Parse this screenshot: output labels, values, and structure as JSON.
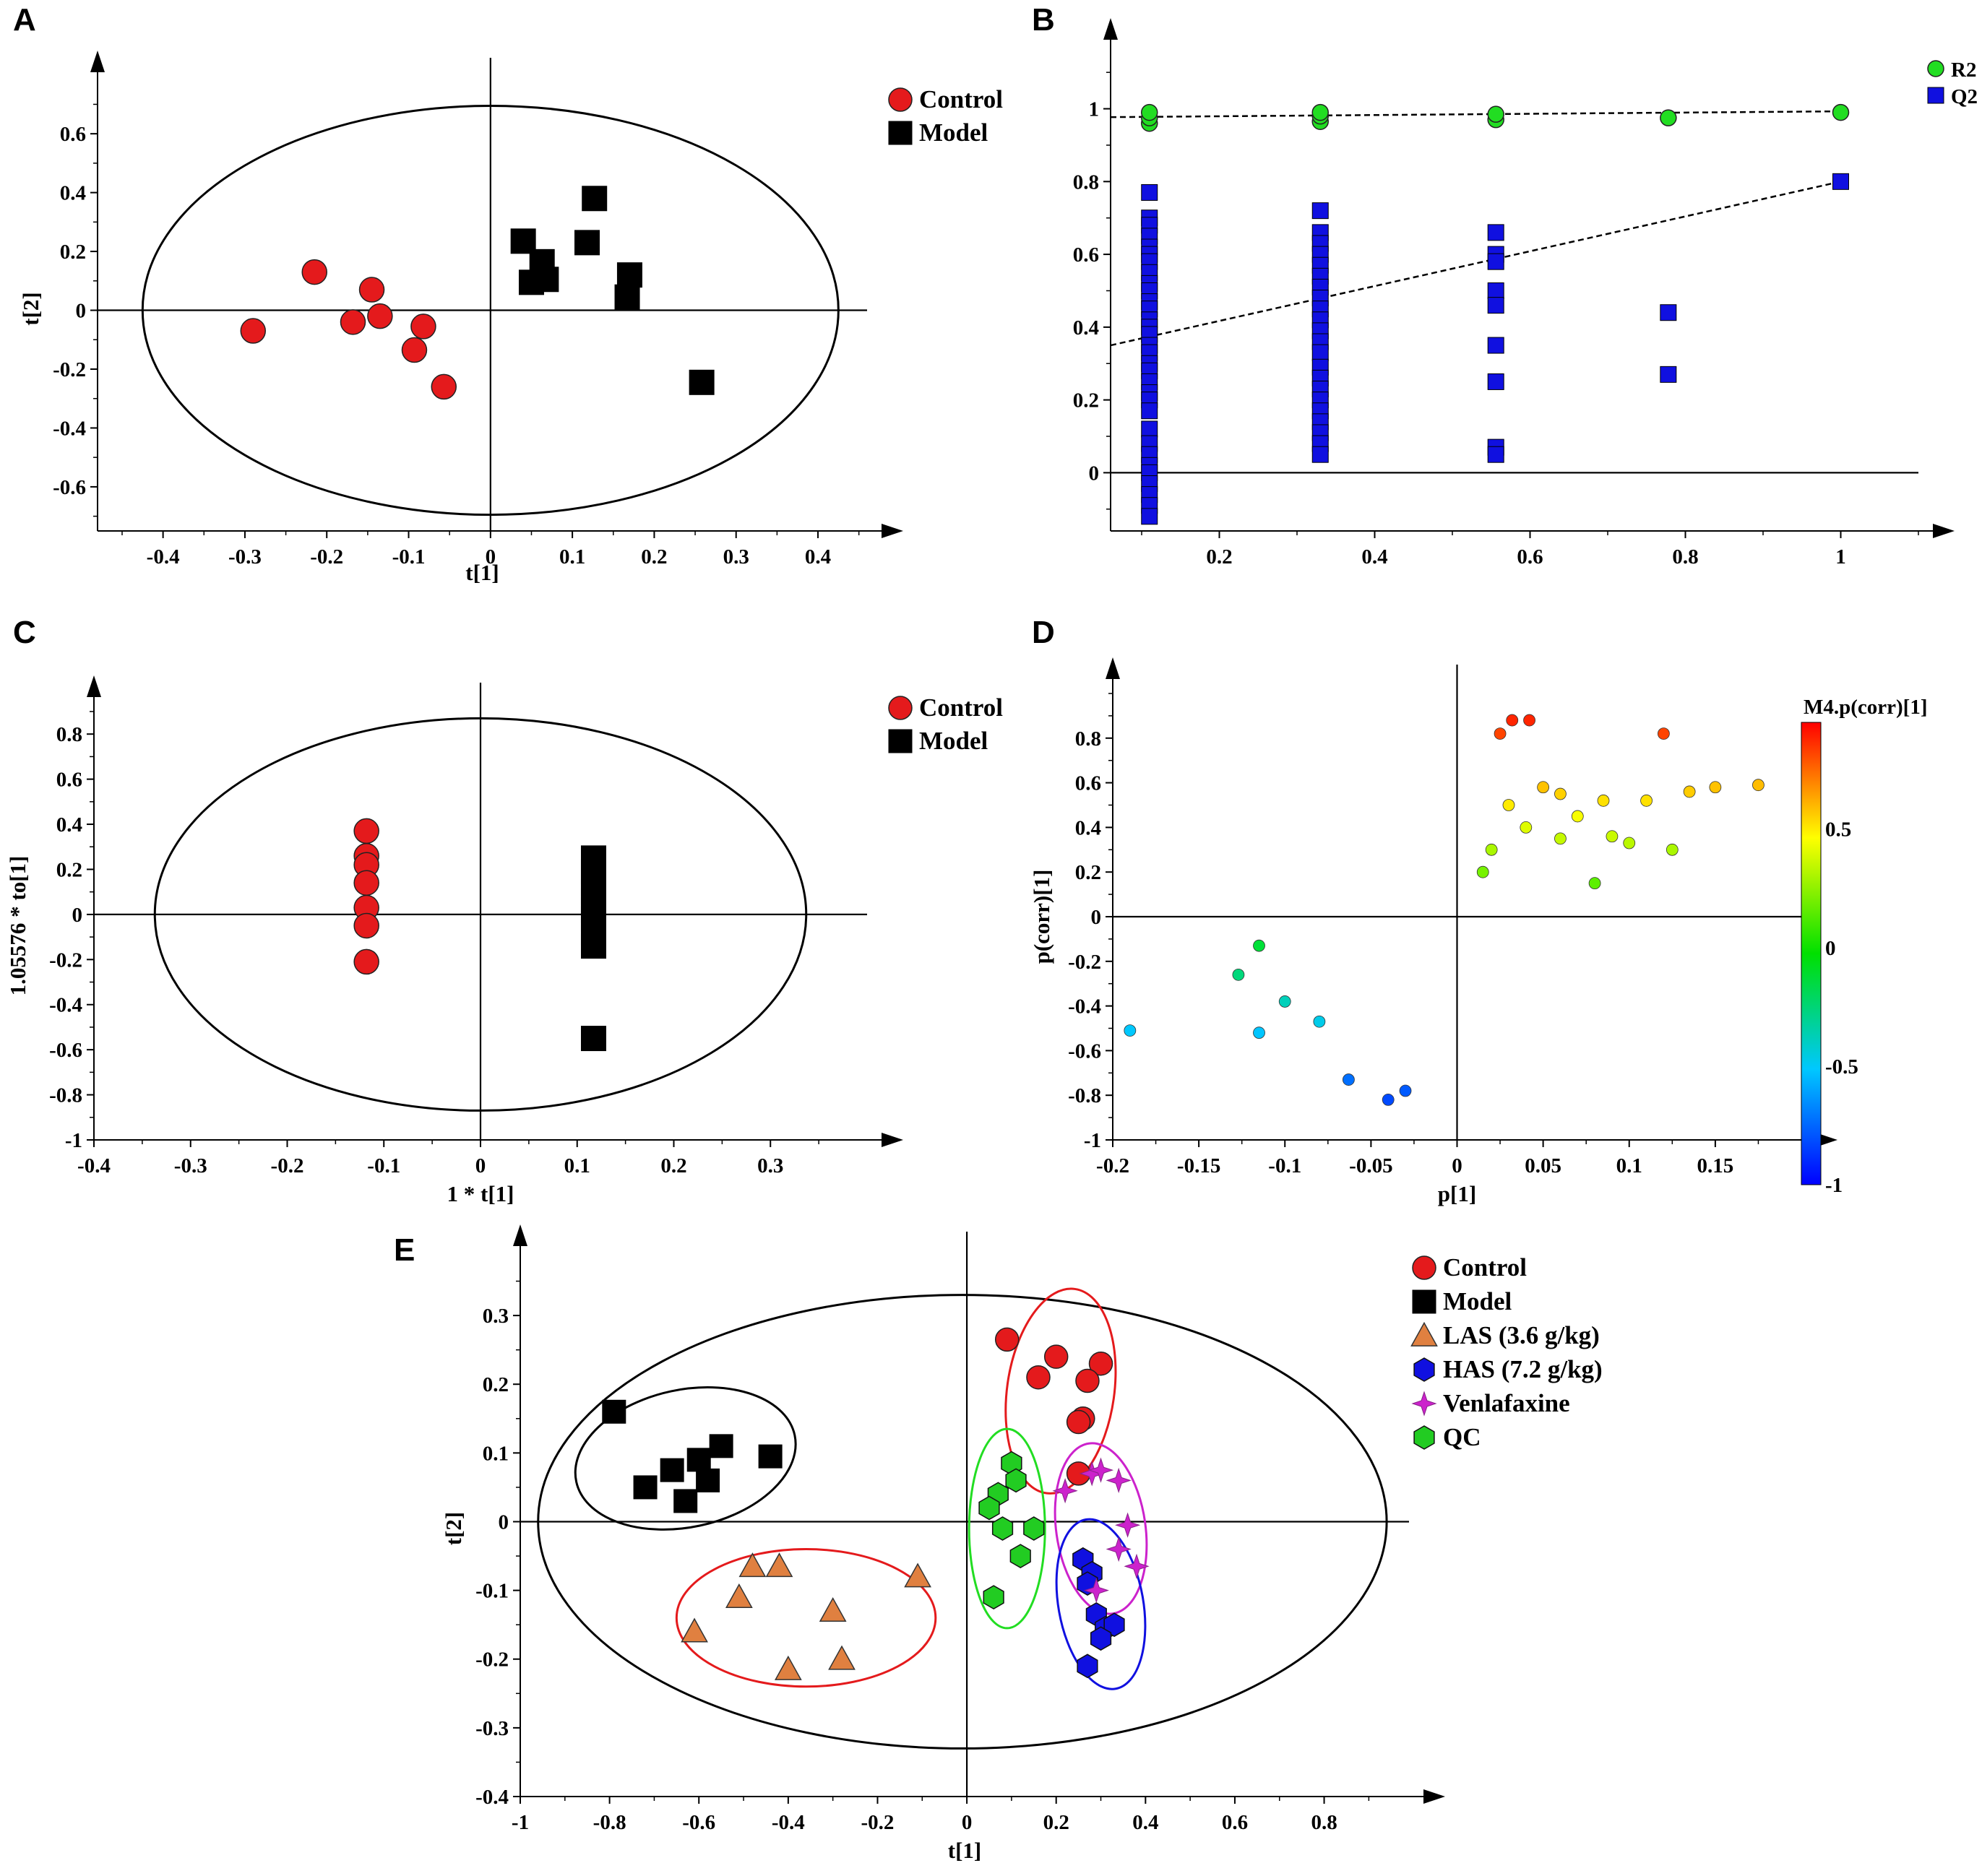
{
  "chart_data": [
    {
      "id": "A",
      "panel_label": "A",
      "type": "scatter",
      "xlabel": "t[1]",
      "ylabel": "t[2]",
      "xlim": [
        -0.48,
        0.46
      ],
      "ylim": [
        -0.75,
        0.76
      ],
      "xticks": [
        "-0.4",
        "-0.3",
        "-0.2",
        "-0.1",
        "0",
        "0.1",
        "0.2",
        "0.3",
        "0.4"
      ],
      "yticks": [
        "-0.6",
        "-0.4",
        "-0.2",
        "0",
        "0.2",
        "0.4",
        "0.6"
      ],
      "ellipse": {
        "cx": 0.0,
        "cy": 0.0,
        "rx": 0.425,
        "ry": 0.695
      },
      "legend": [
        {
          "label": "Control",
          "marker": "circle",
          "color": "#e41a1c"
        },
        {
          "label": "Model",
          "marker": "square",
          "color": "#000000"
        }
      ],
      "series": [
        {
          "name": "Control",
          "marker": "circle",
          "color": "#e41a1c",
          "points": [
            [
              -0.29,
              -0.07
            ],
            [
              -0.215,
              0.13
            ],
            [
              -0.145,
              0.07
            ],
            [
              -0.168,
              -0.04
            ],
            [
              -0.135,
              -0.02
            ],
            [
              -0.082,
              -0.055
            ],
            [
              -0.093,
              -0.135
            ],
            [
              -0.057,
              -0.26
            ]
          ]
        },
        {
          "name": "Model",
          "marker": "square",
          "color": "#000000",
          "points": [
            [
              0.04,
              0.235
            ],
            [
              0.063,
              0.165
            ],
            [
              0.05,
              0.095
            ],
            [
              0.068,
              0.105
            ],
            [
              0.118,
              0.23
            ],
            [
              0.127,
              0.38
            ],
            [
              0.17,
              0.12
            ],
            [
              0.167,
              0.045
            ],
            [
              0.258,
              -0.245
            ]
          ]
        }
      ]
    },
    {
      "id": "B",
      "panel_label": "B",
      "type": "scatter",
      "xlabel": "",
      "ylabel": "",
      "xlim": [
        0.06,
        1.1
      ],
      "ylim": [
        -0.16,
        1.15
      ],
      "xticks": [
        "0.2",
        "0.4",
        "0.6",
        "0.8",
        "1"
      ],
      "yticks": [
        "0",
        "0.2",
        "0.4",
        "0.6",
        "0.8",
        "1"
      ],
      "legend": [
        {
          "label": "R2",
          "marker": "circle",
          "color": "#22dd22"
        },
        {
          "label": "Q2",
          "marker": "square",
          "color": "#1010e0"
        }
      ],
      "series": [
        {
          "name": "R2",
          "marker": "circle",
          "color": "#22dd22",
          "points": [
            [
              0.11,
              0.96
            ],
            [
              0.11,
              0.975
            ],
            [
              0.11,
              0.99
            ],
            [
              0.33,
              0.965
            ],
            [
              0.33,
              0.98
            ],
            [
              0.33,
              0.99
            ],
            [
              0.556,
              0.97
            ],
            [
              0.556,
              0.985
            ],
            [
              0.778,
              0.975
            ],
            [
              1.0,
              0.99
            ]
          ]
        },
        {
          "name": "Q2",
          "marker": "square",
          "color": "#1010e0",
          "points_x": [
            0.11,
            0.33,
            0.556,
            0.778,
            1.0
          ],
          "points_y": [
            [
              0.77,
              0.7,
              0.68,
              0.65,
              0.62,
              0.6,
              0.58,
              0.55,
              0.52,
              0.5,
              0.47,
              0.45,
              0.42,
              0.4,
              0.38,
              0.35,
              0.33,
              0.3,
              0.28,
              0.25,
              0.22,
              0.2,
              0.17,
              0.12,
              0.08,
              0.05,
              0.02,
              0.0,
              -0.03,
              -0.06,
              -0.09,
              -0.12
            ],
            [
              0.72,
              0.66,
              0.63,
              0.6,
              0.57,
              0.54,
              0.51,
              0.48,
              0.45,
              0.42,
              0.39,
              0.36,
              0.33,
              0.29,
              0.26,
              0.23,
              0.2,
              0.17,
              0.14,
              0.11,
              0.08,
              0.05
            ],
            [
              0.66,
              0.6,
              0.58,
              0.5,
              0.46,
              0.35,
              0.25,
              0.07,
              0.05
            ],
            [
              0.44,
              0.27
            ],
            [
              0.8
            ]
          ]
        }
      ],
      "trend_lines": [
        {
          "name": "R2",
          "start": [
            0.06,
            0.977
          ],
          "end": [
            1.0,
            0.993
          ]
        },
        {
          "name": "Q2",
          "start": [
            0.06,
            0.35
          ],
          "end": [
            1.0,
            0.8
          ]
        }
      ]
    },
    {
      "id": "C",
      "panel_label": "C",
      "type": "scatter",
      "xlabel": "1 * t[1]",
      "ylabel": "1.05576 * to[1]",
      "xlim": [
        -0.4,
        0.4
      ],
      "ylim": [
        -1.0,
        0.9
      ],
      "xticks": [
        "-0.4",
        "-0.3",
        "-0.2",
        "-0.1",
        "0",
        "0.1",
        "0.2",
        "0.3"
      ],
      "yticks": [
        "-1",
        "-0.8",
        "-0.6",
        "-0.4",
        "-0.2",
        "0",
        "0.2",
        "0.4",
        "0.6",
        "0.8"
      ],
      "ellipse": {
        "cx": 0.0,
        "cy": 0.0,
        "rx": 0.337,
        "ry": 0.87
      },
      "legend": [
        {
          "label": "Control",
          "marker": "circle",
          "color": "#e41a1c"
        },
        {
          "label": "Model",
          "marker": "square",
          "color": "#000000"
        }
      ],
      "series": [
        {
          "name": "Control",
          "marker": "circle",
          "color": "#e41a1c",
          "points": [
            [
              -0.118,
              0.37
            ],
            [
              -0.118,
              0.26
            ],
            [
              -0.118,
              0.22
            ],
            [
              -0.118,
              0.14
            ],
            [
              -0.118,
              0.03
            ],
            [
              -0.118,
              -0.05
            ],
            [
              -0.118,
              -0.21
            ]
          ]
        },
        {
          "name": "Model",
          "marker": "square",
          "color": "#000000",
          "points": [
            [
              0.117,
              0.25
            ],
            [
              0.117,
              0.19
            ],
            [
              0.117,
              0.14
            ],
            [
              0.117,
              0.1
            ],
            [
              0.117,
              0.06
            ],
            [
              0.117,
              0.02
            ],
            [
              0.117,
              -0.02
            ],
            [
              0.117,
              -0.08
            ],
            [
              0.117,
              -0.14
            ],
            [
              0.117,
              -0.55
            ]
          ]
        }
      ]
    },
    {
      "id": "D",
      "panel_label": "D",
      "type": "scatter",
      "xlabel": "p[1]",
      "ylabel": "p(corr)[1]",
      "xlim": [
        -0.2,
        0.2
      ],
      "ylim": [
        -1.0,
        1.0
      ],
      "xticks": [
        "-0.2",
        "-0.15",
        "-0.1",
        "-0.05",
        "0",
        "0.05",
        "0.1",
        "0.15"
      ],
      "yticks": [
        "-1",
        "-0.8",
        "-0.6",
        "-0.4",
        "-0.2",
        "0",
        "0.2",
        "0.4",
        "0.6",
        "0.8"
      ],
      "colorbar": {
        "title": "M4.p(corr)[1]",
        "ticks": [
          "0.5",
          "0",
          "-0.5",
          "-1"
        ],
        "range": [
          -1,
          0.95
        ]
      },
      "series": [
        {
          "name": "variables",
          "marker": "circle",
          "color_by": "p(corr)",
          "points": [
            [
              -0.19,
              -0.51
            ],
            [
              -0.115,
              -0.52
            ],
            [
              -0.115,
              -0.13
            ],
            [
              -0.127,
              -0.26
            ],
            [
              -0.1,
              -0.38
            ],
            [
              -0.08,
              -0.47
            ],
            [
              -0.063,
              -0.73
            ],
            [
              -0.04,
              -0.82
            ],
            [
              -0.03,
              -0.78
            ],
            [
              0.12,
              0.82
            ],
            [
              0.175,
              0.59
            ],
            [
              0.15,
              0.58
            ],
            [
              0.135,
              0.56
            ],
            [
              0.11,
              0.52
            ],
            [
              0.125,
              0.3
            ],
            [
              0.1,
              0.33
            ],
            [
              0.08,
              0.15
            ],
            [
              0.032,
              0.88
            ],
            [
              0.042,
              0.88
            ],
            [
              0.025,
              0.82
            ],
            [
              0.05,
              0.58
            ],
            [
              0.06,
              0.55
            ],
            [
              0.07,
              0.45
            ],
            [
              0.09,
              0.36
            ],
            [
              0.085,
              0.52
            ],
            [
              0.06,
              0.35
            ],
            [
              0.04,
              0.4
            ],
            [
              0.03,
              0.5
            ],
            [
              0.02,
              0.3
            ],
            [
              0.015,
              0.2
            ]
          ]
        }
      ]
    },
    {
      "id": "E",
      "panel_label": "E",
      "type": "scatter",
      "xlabel": "t[1]",
      "ylabel": "t[2]",
      "xlim": [
        -1.0,
        0.99
      ],
      "ylim": [
        -0.4,
        0.38
      ],
      "xticks": [
        "-1",
        "-0.8",
        "-0.6",
        "-0.4",
        "-0.2",
        "0",
        "0.2",
        "0.4",
        "0.6",
        "0.8"
      ],
      "yticks": [
        "-0.4",
        "-0.3",
        "-0.2",
        "-0.1",
        "0",
        "0.1",
        "0.2",
        "0.3"
      ],
      "ellipse": {
        "cx": -0.01,
        "cy": 0.0,
        "rx": 0.95,
        "ry": 0.33
      },
      "legend": [
        {
          "label": "Control",
          "marker": "circle",
          "color": "#e41a1c"
        },
        {
          "label": "Model",
          "marker": "square",
          "color": "#000000"
        },
        {
          "label": "LAS (3.6 g/kg)",
          "marker": "triangle",
          "color": "#e08040"
        },
        {
          "label": "HAS (7.2 g/kg)",
          "marker": "hexagon",
          "color": "#1010e0"
        },
        {
          "label": "Venlafaxine",
          "marker": "star",
          "color": "#cc22cc"
        },
        {
          "label": "QC",
          "marker": "hexagon",
          "color": "#22cc22"
        }
      ],
      "series": [
        {
          "name": "Control",
          "marker": "circle",
          "color": "#e41a1c",
          "points": [
            [
              0.09,
              0.265
            ],
            [
              0.2,
              0.24
            ],
            [
              0.16,
              0.21
            ],
            [
              0.3,
              0.23
            ],
            [
              0.27,
              0.205
            ],
            [
              0.26,
              0.15
            ],
            [
              0.25,
              0.145
            ],
            [
              0.25,
              0.07
            ]
          ]
        },
        {
          "name": "Model",
          "marker": "square",
          "color": "#000000",
          "points": [
            [
              -0.79,
              0.16
            ],
            [
              -0.72,
              0.05
            ],
            [
              -0.66,
              0.075
            ],
            [
              -0.6,
              0.09
            ],
            [
              -0.55,
              0.11
            ],
            [
              -0.63,
              0.03
            ],
            [
              -0.58,
              0.06
            ],
            [
              -0.44,
              0.095
            ]
          ]
        },
        {
          "name": "LAS (3.6 g/kg)",
          "marker": "triangle",
          "color": "#e08040",
          "points": [
            [
              -0.61,
              -0.16
            ],
            [
              -0.51,
              -0.11
            ],
            [
              -0.48,
              -0.065
            ],
            [
              -0.42,
              -0.065
            ],
            [
              -0.4,
              -0.215
            ],
            [
              -0.3,
              -0.13
            ],
            [
              -0.28,
              -0.2
            ],
            [
              -0.11,
              -0.08
            ]
          ]
        },
        {
          "name": "HAS (7.2 g/kg)",
          "marker": "hexagon",
          "color": "#1010e0",
          "points": [
            [
              0.26,
              -0.055
            ],
            [
              0.28,
              -0.075
            ],
            [
              0.27,
              -0.09
            ],
            [
              0.29,
              -0.135
            ],
            [
              0.31,
              -0.155
            ],
            [
              0.33,
              -0.15
            ],
            [
              0.3,
              -0.17
            ],
            [
              0.27,
              -0.21
            ]
          ]
        },
        {
          "name": "Venlafaxine",
          "marker": "star",
          "color": "#cc22cc",
          "points": [
            [
              0.22,
              0.045
            ],
            [
              0.28,
              0.07
            ],
            [
              0.3,
              0.075
            ],
            [
              0.34,
              0.06
            ],
            [
              0.36,
              -0.005
            ],
            [
              0.34,
              -0.04
            ],
            [
              0.38,
              -0.065
            ],
            [
              0.29,
              -0.1
            ]
          ]
        },
        {
          "name": "QC",
          "marker": "hexagon",
          "color": "#22cc22",
          "points": [
            [
              0.1,
              0.085
            ],
            [
              0.11,
              0.06
            ],
            [
              0.07,
              0.04
            ],
            [
              0.05,
              0.02
            ],
            [
              0.08,
              -0.01
            ],
            [
              0.15,
              -0.01
            ],
            [
              0.12,
              -0.05
            ],
            [
              0.06,
              -0.11
            ]
          ]
        }
      ],
      "group_ellipses": [
        {
          "group": "Model",
          "color": "#000000",
          "cx": -0.63,
          "cy": 0.092,
          "rx": 0.25,
          "ry": 0.1,
          "angle_deg": 12
        },
        {
          "group": "LAS (3.6 g/kg)",
          "color": "#e41a1c",
          "cx": -0.36,
          "cy": -0.14,
          "rx": 0.29,
          "ry": 0.1,
          "angle_deg": 0
        },
        {
          "group": "Control",
          "color": "#e41a1c",
          "cx": 0.21,
          "cy": 0.19,
          "rx": 0.12,
          "ry": 0.15,
          "angle_deg": -8
        },
        {
          "group": "QC",
          "color": "#22dd22",
          "cx": 0.09,
          "cy": -0.01,
          "rx": 0.085,
          "ry": 0.145,
          "angle_deg": 0
        },
        {
          "group": "Venlafaxine",
          "color": "#cc22cc",
          "cx": 0.3,
          "cy": -0.01,
          "rx": 0.1,
          "ry": 0.125,
          "angle_deg": 8
        },
        {
          "group": "HAS (7.2 g/kg)",
          "color": "#1010e0",
          "cx": 0.3,
          "cy": -0.12,
          "rx": 0.095,
          "ry": 0.125,
          "angle_deg": 10
        }
      ]
    }
  ]
}
